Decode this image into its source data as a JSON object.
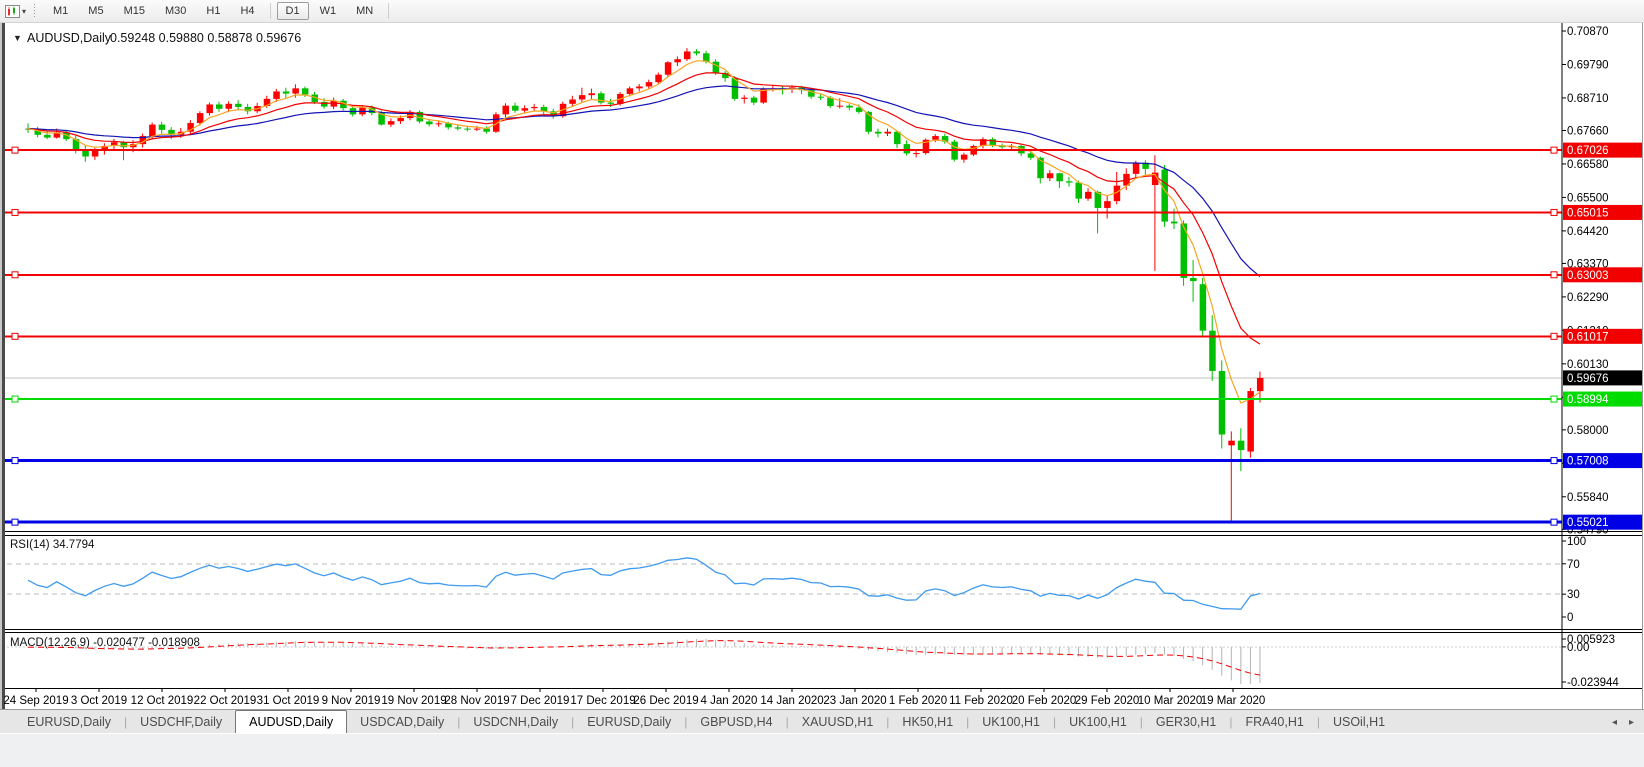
{
  "toolbar": {
    "chart_icon": "candlestick-chart-icon",
    "periods": [
      "M1",
      "M5",
      "M15",
      "M30",
      "H1",
      "H4",
      "D1",
      "W1",
      "MN"
    ],
    "active_period": "D1"
  },
  "chart": {
    "title": {
      "symbol_period": "AUDUSD,Daily",
      "ohlc": "0.59248 0.59880 0.58878 0.59676",
      "collapse_glyph": "▼"
    },
    "price_axis_ticks": [
      "0.70870",
      "0.69790",
      "0.68710",
      "0.67660",
      "0.66580",
      "0.65500",
      "0.64420",
      "0.63370",
      "0.62290",
      "0.61210",
      "0.60130",
      "0.59050",
      "0.58000",
      "0.56920",
      "0.55840",
      "0.54790"
    ],
    "current_price": {
      "value": "0.59676",
      "box_color": "#000000",
      "text_color": "#ffffff",
      "line_color": "#c0c0c0"
    },
    "hlines": [
      {
        "value": 0.67026,
        "label": "0.67026",
        "color": "#f20000",
        "width": 2
      },
      {
        "value": 0.65015,
        "label": "0.65015",
        "color": "#f20000",
        "width": 2
      },
      {
        "value": 0.63003,
        "label": "0.63003",
        "color": "#f20000",
        "width": 2
      },
      {
        "value": 0.61017,
        "label": "0.61017",
        "color": "#f20000",
        "width": 2
      },
      {
        "value": 0.58994,
        "label": "0.58994",
        "color": "#00dc00",
        "width": 2
      },
      {
        "value": 0.57008,
        "label": "0.57008",
        "color": "#0000e6",
        "width": 3
      },
      {
        "value": 0.55021,
        "label": "0.55021",
        "color": "#0000e6",
        "width": 3
      }
    ],
    "moving_averages": [
      {
        "name": "ma-fast",
        "period": 5,
        "color": "#f5a623"
      },
      {
        "name": "ma-medium",
        "period": 12,
        "color": "#f20000"
      },
      {
        "name": "ma-slow",
        "period": 26,
        "color": "#1414b4"
      }
    ],
    "chart_data": {
      "type": "candlestick",
      "bull_color": "#ff0000",
      "bear_color": "#00bE00",
      "prehistory_closes": [
        0.679,
        0.6782,
        0.6775,
        0.6768,
        0.6772,
        0.676,
        0.6755,
        0.6762,
        0.677,
        0.6758,
        0.675,
        0.6742,
        0.6748,
        0.676,
        0.6772,
        0.6765,
        0.6778,
        0.6785,
        0.6775,
        0.6768,
        0.676,
        0.6772,
        0.678,
        0.679,
        0.6782,
        0.677,
        0.6762,
        0.6775,
        0.6785,
        0.6792,
        0.68,
        0.6812,
        0.6805,
        0.6795,
        0.6788,
        0.6778,
        0.6768,
        0.6758,
        0.6748,
        0.674,
        0.6752,
        0.6762,
        0.677,
        0.6782,
        0.6775,
        0.6768,
        0.676,
        0.6772,
        0.678,
        0.6775
      ],
      "ohlc": [
        [
          0.6772,
          0.6789,
          0.6758,
          0.677
        ],
        [
          0.677,
          0.6778,
          0.6744,
          0.6752
        ],
        [
          0.6752,
          0.6766,
          0.6738,
          0.6743
        ],
        [
          0.6743,
          0.6772,
          0.674,
          0.676
        ],
        [
          0.676,
          0.6766,
          0.6732,
          0.6738
        ],
        [
          0.6738,
          0.6748,
          0.6692,
          0.6705
        ],
        [
          0.6705,
          0.6716,
          0.6665,
          0.6682
        ],
        [
          0.6682,
          0.671,
          0.6671,
          0.67
        ],
        [
          0.67,
          0.6725,
          0.6688,
          0.6716
        ],
        [
          0.6716,
          0.6739,
          0.6705,
          0.6728
        ],
        [
          0.6728,
          0.6733,
          0.667,
          0.6712
        ],
        [
          0.6712,
          0.6735,
          0.6696,
          0.6722
        ],
        [
          0.6722,
          0.6756,
          0.6711,
          0.6748
        ],
        [
          0.6748,
          0.6792,
          0.6738,
          0.6785
        ],
        [
          0.6785,
          0.6794,
          0.6756,
          0.6768
        ],
        [
          0.6768,
          0.6777,
          0.6739,
          0.6752
        ],
        [
          0.6752,
          0.6774,
          0.6742,
          0.6762
        ],
        [
          0.6762,
          0.68,
          0.6751,
          0.679
        ],
        [
          0.679,
          0.6828,
          0.6782,
          0.6822
        ],
        [
          0.6822,
          0.6856,
          0.6814,
          0.685
        ],
        [
          0.685,
          0.6859,
          0.6826,
          0.6836
        ],
        [
          0.6836,
          0.686,
          0.6825,
          0.6852
        ],
        [
          0.6852,
          0.6864,
          0.6831,
          0.6842
        ],
        [
          0.6842,
          0.6852,
          0.6818,
          0.6828
        ],
        [
          0.6828,
          0.6855,
          0.6822,
          0.6845
        ],
        [
          0.6845,
          0.6878,
          0.6839,
          0.6868
        ],
        [
          0.6868,
          0.69,
          0.6858,
          0.6892
        ],
        [
          0.6892,
          0.6904,
          0.6871,
          0.6885
        ],
        [
          0.6885,
          0.6915,
          0.6872,
          0.6902
        ],
        [
          0.6902,
          0.6908,
          0.6874,
          0.6882
        ],
        [
          0.6882,
          0.689,
          0.6851,
          0.6858
        ],
        [
          0.6858,
          0.687,
          0.6836,
          0.6843
        ],
        [
          0.6843,
          0.6872,
          0.6835,
          0.6862
        ],
        [
          0.6862,
          0.6868,
          0.6831,
          0.6838
        ],
        [
          0.6838,
          0.6846,
          0.6811,
          0.6818
        ],
        [
          0.6818,
          0.6848,
          0.6812,
          0.684
        ],
        [
          0.684,
          0.6847,
          0.6815,
          0.6822
        ],
        [
          0.6822,
          0.683,
          0.6782,
          0.6785
        ],
        [
          0.6785,
          0.6805,
          0.6777,
          0.6796
        ],
        [
          0.6796,
          0.6814,
          0.6787,
          0.6806
        ],
        [
          0.6806,
          0.6832,
          0.6799,
          0.6826
        ],
        [
          0.6826,
          0.6831,
          0.6789,
          0.6795
        ],
        [
          0.6795,
          0.6804,
          0.6779,
          0.6786
        ],
        [
          0.6786,
          0.6799,
          0.6778,
          0.6789
        ],
        [
          0.6789,
          0.6794,
          0.6769,
          0.6776
        ],
        [
          0.6776,
          0.6786,
          0.6766,
          0.6772
        ],
        [
          0.6772,
          0.6781,
          0.6763,
          0.677
        ],
        [
          0.677,
          0.6781,
          0.6764,
          0.6772
        ],
        [
          0.6772,
          0.6779,
          0.6756,
          0.6762
        ],
        [
          0.6762,
          0.6825,
          0.6758,
          0.6818
        ],
        [
          0.6818,
          0.6854,
          0.6808,
          0.6846
        ],
        [
          0.6846,
          0.6856,
          0.6823,
          0.683
        ],
        [
          0.683,
          0.6847,
          0.6821,
          0.6838
        ],
        [
          0.6838,
          0.6852,
          0.6828,
          0.6842
        ],
        [
          0.6842,
          0.6849,
          0.6819,
          0.6828
        ],
        [
          0.6828,
          0.6836,
          0.6804,
          0.6812
        ],
        [
          0.6812,
          0.6859,
          0.6807,
          0.6852
        ],
        [
          0.6852,
          0.6878,
          0.6842,
          0.6866
        ],
        [
          0.6866,
          0.6904,
          0.6856,
          0.688
        ],
        [
          0.688,
          0.6901,
          0.6868,
          0.6886
        ],
        [
          0.6886,
          0.6892,
          0.685,
          0.6856
        ],
        [
          0.6856,
          0.6868,
          0.6842,
          0.6852
        ],
        [
          0.6852,
          0.689,
          0.6846,
          0.6884
        ],
        [
          0.6884,
          0.6908,
          0.6876,
          0.6902
        ],
        [
          0.6902,
          0.6916,
          0.6892,
          0.6908
        ],
        [
          0.6908,
          0.693,
          0.6901,
          0.6922
        ],
        [
          0.6922,
          0.6953,
          0.6916,
          0.6946
        ],
        [
          0.6946,
          0.699,
          0.694,
          0.6986
        ],
        [
          0.6986,
          0.7005,
          0.6974,
          0.6996
        ],
        [
          0.6996,
          0.7032,
          0.699,
          0.7021
        ],
        [
          0.7021,
          0.7028,
          0.7008,
          0.7015
        ],
        [
          0.7015,
          0.7023,
          0.6982,
          0.6988
        ],
        [
          0.6988,
          0.6996,
          0.6945,
          0.6952
        ],
        [
          0.6952,
          0.6958,
          0.6923,
          0.6935
        ],
        [
          0.6935,
          0.6941,
          0.6862,
          0.6868
        ],
        [
          0.6868,
          0.688,
          0.6853,
          0.6872
        ],
        [
          0.6872,
          0.6878,
          0.6848,
          0.6856
        ],
        [
          0.6856,
          0.6905,
          0.6852,
          0.69
        ],
        [
          0.69,
          0.6912,
          0.6892,
          0.6902
        ],
        [
          0.6902,
          0.6909,
          0.6882,
          0.6898
        ],
        [
          0.6898,
          0.6912,
          0.6887,
          0.6905
        ],
        [
          0.6905,
          0.691,
          0.6883,
          0.6896
        ],
        [
          0.6896,
          0.6901,
          0.6868,
          0.6875
        ],
        [
          0.6875,
          0.6884,
          0.6864,
          0.6872
        ],
        [
          0.6872,
          0.6877,
          0.6838,
          0.6845
        ],
        [
          0.6845,
          0.687,
          0.6837,
          0.6846
        ],
        [
          0.6846,
          0.6852,
          0.6831,
          0.684
        ],
        [
          0.684,
          0.685,
          0.682,
          0.6826
        ],
        [
          0.6826,
          0.6829,
          0.6754,
          0.6762
        ],
        [
          0.6762,
          0.6772,
          0.6744,
          0.6756
        ],
        [
          0.6756,
          0.6772,
          0.6748,
          0.6762
        ],
        [
          0.6762,
          0.6766,
          0.6709,
          0.6722
        ],
        [
          0.6722,
          0.6734,
          0.6685,
          0.6692
        ],
        [
          0.6692,
          0.6705,
          0.6679,
          0.6693
        ],
        [
          0.6693,
          0.674,
          0.6688,
          0.6736
        ],
        [
          0.6736,
          0.6754,
          0.6728,
          0.6748
        ],
        [
          0.6748,
          0.6756,
          0.6723,
          0.673
        ],
        [
          0.673,
          0.6736,
          0.6666,
          0.6672
        ],
        [
          0.6672,
          0.6694,
          0.6662,
          0.6688
        ],
        [
          0.6688,
          0.672,
          0.6683,
          0.6716
        ],
        [
          0.6716,
          0.6744,
          0.6708,
          0.6738
        ],
        [
          0.6738,
          0.6743,
          0.6712,
          0.6718
        ],
        [
          0.6718,
          0.6724,
          0.6703,
          0.6712
        ],
        [
          0.6712,
          0.6723,
          0.6702,
          0.6716
        ],
        [
          0.6716,
          0.672,
          0.6683,
          0.6692
        ],
        [
          0.6692,
          0.6701,
          0.6671,
          0.6678
        ],
        [
          0.6678,
          0.6682,
          0.6595,
          0.6612
        ],
        [
          0.6612,
          0.6638,
          0.6603,
          0.6628
        ],
        [
          0.6628,
          0.663,
          0.658,
          0.6602
        ],
        [
          0.6602,
          0.6616,
          0.6585,
          0.6598
        ],
        [
          0.6598,
          0.6604,
          0.6532,
          0.6546
        ],
        [
          0.6546,
          0.658,
          0.6539,
          0.6568
        ],
        [
          0.6568,
          0.6572,
          0.6434,
          0.6516
        ],
        [
          0.6516,
          0.6556,
          0.6482,
          0.6538
        ],
        [
          0.6538,
          0.6632,
          0.6528,
          0.6588
        ],
        [
          0.6588,
          0.6644,
          0.6574,
          0.6626
        ],
        [
          0.6626,
          0.6668,
          0.6612,
          0.6662
        ],
        [
          0.6662,
          0.667,
          0.662,
          0.6642
        ],
        [
          0.659,
          0.6686,
          0.6313,
          0.663
        ],
        [
          0.664,
          0.6655,
          0.6455,
          0.6472
        ],
        [
          0.6472,
          0.6514,
          0.6448,
          0.6466
        ],
        [
          0.6466,
          0.6476,
          0.6265,
          0.629
        ],
        [
          0.629,
          0.6348,
          0.6213,
          0.628
        ],
        [
          0.627,
          0.629,
          0.6102,
          0.612
        ],
        [
          0.612,
          0.617,
          0.5958,
          0.599
        ],
        [
          0.599,
          0.6024,
          0.574,
          0.5785
        ],
        [
          0.575,
          0.5795,
          0.5498,
          0.5765
        ],
        [
          0.5765,
          0.5805,
          0.5667,
          0.5735
        ],
        [
          0.573,
          0.5935,
          0.571,
          0.5925
        ],
        [
          0.59248,
          0.5988,
          0.58878,
          0.59676
        ]
      ]
    },
    "date_axis": [
      "24 Sep 2019",
      "3 Oct 2019",
      "12 Oct 2019",
      "22 Oct 2019",
      "31 Oct 2019",
      "9 Nov 2019",
      "19 Nov 2019",
      "28 Nov 2019",
      "7 Dec 2019",
      "17 Dec 2019",
      "26 Dec 2019",
      "4 Jan 2020",
      "14 Jan 2020",
      "23 Jan 2020",
      "1 Feb 2020",
      "11 Feb 2020",
      "20 Feb 2020",
      "29 Feb 2020",
      "10 Mar 2020",
      "19 Mar 2020"
    ]
  },
  "rsi": {
    "label": "RSI(14) 34.7794",
    "period": 14,
    "axis_labels": [
      "100",
      "70",
      "30",
      "0"
    ],
    "axis_values": [
      100,
      70,
      30,
      0
    ],
    "dashed_levels": [
      70,
      30
    ],
    "line_color": "#3e9aef"
  },
  "macd": {
    "label": "MACD(12,26,9) -0.020477 -0.018908",
    "fast": 12,
    "slow": 26,
    "signal": 9,
    "axis_label_max": "0.005923",
    "axis_label_zero": "0.00",
    "axis_label_min": "-0.023944",
    "histogram_color": "#b4b4b4",
    "signal_color": "#f20000"
  },
  "tabs": {
    "items": [
      "EURUSD,Daily",
      "USDCHF,Daily",
      "AUDUSD,Daily",
      "USDCAD,Daily",
      "USDCNH,Daily",
      "EURUSD,Daily",
      "GBPUSD,H4",
      "XAUUSD,H1",
      "HK50,H1",
      "UK100,H1",
      "UK100,H1",
      "GER30,H1",
      "FRA40,H1",
      "USOil,H1"
    ],
    "active_index": 2,
    "scroll_left": "◂",
    "scroll_right": "▸"
  }
}
